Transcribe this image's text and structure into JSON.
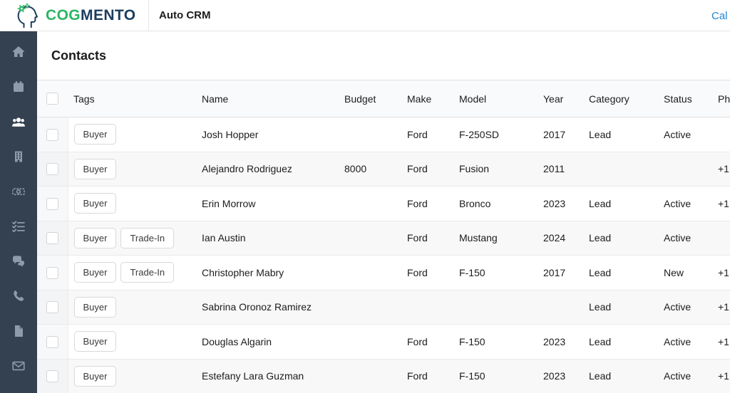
{
  "brand": {
    "name_part1": "COG",
    "name_part2": "MENTO",
    "green": "#2bb563",
    "navy": "#1b3c5e"
  },
  "topnav": {
    "app_title": "Auto CRM",
    "right_link": "Cal"
  },
  "sidebar": {
    "active_item": "contacts",
    "items": [
      {
        "id": "home"
      },
      {
        "id": "calendar"
      },
      {
        "id": "contacts"
      },
      {
        "id": "companies"
      },
      {
        "id": "deals"
      },
      {
        "id": "tasks"
      },
      {
        "id": "messages"
      },
      {
        "id": "calls"
      },
      {
        "id": "documents"
      },
      {
        "id": "email"
      }
    ]
  },
  "page": {
    "title": "Contacts"
  },
  "table": {
    "columns": [
      "Tags",
      "Name",
      "Budget",
      "Make",
      "Model",
      "Year",
      "Category",
      "Status",
      "Ph"
    ],
    "rows": [
      {
        "tags": [
          "Buyer"
        ],
        "name": "Josh Hopper",
        "budget": "",
        "make": "Ford",
        "model": "F-250SD",
        "year": "2017",
        "category": "Lead",
        "status": "Active",
        "phone": ""
      },
      {
        "tags": [
          "Buyer"
        ],
        "name": "Alejandro Rodriguez",
        "budget": "8000",
        "make": "Ford",
        "model": "Fusion",
        "year": "2011",
        "category": "",
        "status": "",
        "phone": "+1"
      },
      {
        "tags": [
          "Buyer"
        ],
        "name": "Erin Morrow",
        "budget": "",
        "make": "Ford",
        "model": "Bronco",
        "year": "2023",
        "category": "Lead",
        "status": "Active",
        "phone": "+1"
      },
      {
        "tags": [
          "Buyer",
          "Trade-In"
        ],
        "name": "Ian Austin",
        "budget": "",
        "make": "Ford",
        "model": "Mustang",
        "year": "2024",
        "category": "Lead",
        "status": "Active",
        "phone": ""
      },
      {
        "tags": [
          "Buyer",
          "Trade-In"
        ],
        "name": "Christopher Mabry",
        "budget": "",
        "make": "Ford",
        "model": "F-150",
        "year": "2017",
        "category": "Lead",
        "status": "New",
        "phone": "+1"
      },
      {
        "tags": [
          "Buyer"
        ],
        "name": "Sabrina Oronoz Ramirez",
        "budget": "",
        "make": "",
        "model": "",
        "year": "",
        "category": "Lead",
        "status": "Active",
        "phone": "+1"
      },
      {
        "tags": [
          "Buyer"
        ],
        "name": "Douglas Algarin",
        "budget": "",
        "make": "Ford",
        "model": "F-150",
        "year": "2023",
        "category": "Lead",
        "status": "Active",
        "phone": "+1"
      },
      {
        "tags": [
          "Buyer"
        ],
        "name": "Estefany Lara Guzman",
        "budget": "",
        "make": "Ford",
        "model": "F-150",
        "year": "2023",
        "category": "Lead",
        "status": "Active",
        "phone": "+1"
      }
    ]
  }
}
